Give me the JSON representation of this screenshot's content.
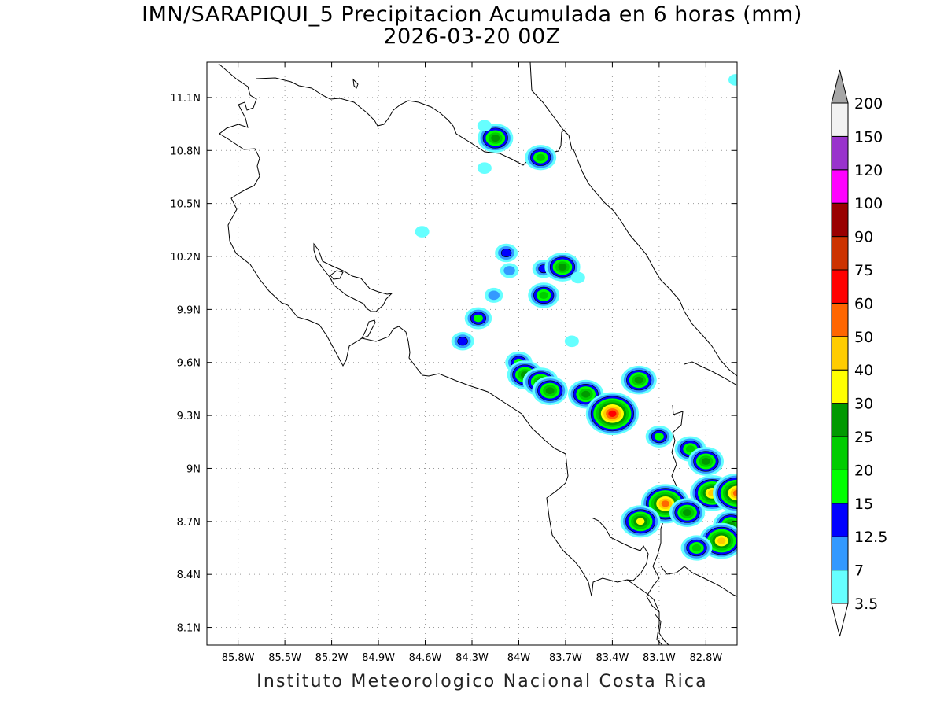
{
  "title": {
    "line1": "IMN/SARAPIQUI_5 Precipitacion Acumulada en 6 horas (mm)",
    "line2": "2026-03-20 00Z"
  },
  "footer": "Instituto Meteorologico Nacional Costa Rica",
  "map": {
    "lon_range": [
      -86.0,
      -82.6
    ],
    "lat_range": [
      8.0,
      11.3
    ],
    "lon_ticks": [
      {
        "value": -85.8,
        "label": "85.8W"
      },
      {
        "value": -85.5,
        "label": "85.5W"
      },
      {
        "value": -85.2,
        "label": "85.2W"
      },
      {
        "value": -84.9,
        "label": "84.9W"
      },
      {
        "value": -84.6,
        "label": "84.6W"
      },
      {
        "value": -84.3,
        "label": "84.3W"
      },
      {
        "value": -84.0,
        "label": "84W"
      },
      {
        "value": -83.7,
        "label": "83.7W"
      },
      {
        "value": -83.4,
        "label": "83.4W"
      },
      {
        "value": -83.1,
        "label": "83.1W"
      },
      {
        "value": -82.8,
        "label": "82.8W"
      }
    ],
    "lat_ticks": [
      {
        "value": 8.1,
        "label": "8.1N"
      },
      {
        "value": 8.4,
        "label": "8.4N"
      },
      {
        "value": 8.7,
        "label": "8.7N"
      },
      {
        "value": 9.0,
        "label": "9N"
      },
      {
        "value": 9.3,
        "label": "9.3N"
      },
      {
        "value": 9.6,
        "label": "9.6N"
      },
      {
        "value": 9.9,
        "label": "9.9N"
      },
      {
        "value": 10.2,
        "label": "10.2N"
      },
      {
        "value": 10.5,
        "label": "10.5N"
      },
      {
        "value": 10.8,
        "label": "10.8N"
      },
      {
        "value": 11.1,
        "label": "11.1N"
      }
    ],
    "grid": true
  },
  "colorbar": {
    "unit": "mm",
    "levels": [
      "3.5",
      "7",
      "12.5",
      "15",
      "20",
      "25",
      "30",
      "40",
      "50",
      "60",
      "75",
      "90",
      "100",
      "120",
      "150",
      "200"
    ],
    "colors": [
      "#66ffff",
      "#3399ff",
      "#0000ff",
      "#00ff00",
      "#00cc00",
      "#009900",
      "#ffff00",
      "#ffcc00",
      "#ff6600",
      "#ff0000",
      "#cc3300",
      "#990000",
      "#ff00ff",
      "#9933cc",
      "#f2f2f2"
    ],
    "under_color": "#ffffff",
    "over_color": "#a6a6a6"
  },
  "chart_data": {
    "type": "heatmap",
    "description_field": "6-hour accumulated precipitation cells (approximate), value = peak mm",
    "cells": [
      {
        "lon": -84.15,
        "lat": 10.87,
        "value": 25
      },
      {
        "lon": -84.22,
        "lat": 10.94,
        "value": 3.5
      },
      {
        "lon": -83.86,
        "lat": 10.76,
        "value": 20
      },
      {
        "lon": -84.22,
        "lat": 10.7,
        "value": 3.5
      },
      {
        "lon": -84.62,
        "lat": 10.34,
        "value": 3.5
      },
      {
        "lon": -84.08,
        "lat": 10.22,
        "value": 12.5
      },
      {
        "lon": -84.06,
        "lat": 10.12,
        "value": 7
      },
      {
        "lon": -83.84,
        "lat": 10.13,
        "value": 12.5
      },
      {
        "lon": -83.72,
        "lat": 10.14,
        "value": 25
      },
      {
        "lon": -83.62,
        "lat": 10.08,
        "value": 3.5
      },
      {
        "lon": -84.16,
        "lat": 9.98,
        "value": 7
      },
      {
        "lon": -83.84,
        "lat": 9.98,
        "value": 20
      },
      {
        "lon": -84.26,
        "lat": 9.85,
        "value": 15
      },
      {
        "lon": -84.36,
        "lat": 9.72,
        "value": 12.5
      },
      {
        "lon": -83.66,
        "lat": 9.72,
        "value": 3.5
      },
      {
        "lon": -84.0,
        "lat": 9.6,
        "value": 15
      },
      {
        "lon": -83.96,
        "lat": 9.53,
        "value": 25
      },
      {
        "lon": -83.86,
        "lat": 9.49,
        "value": 25
      },
      {
        "lon": -83.8,
        "lat": 9.44,
        "value": 25
      },
      {
        "lon": -83.57,
        "lat": 9.42,
        "value": 25
      },
      {
        "lon": -83.4,
        "lat": 9.31,
        "value": 60
      },
      {
        "lon": -83.23,
        "lat": 9.5,
        "value": 25
      },
      {
        "lon": -83.1,
        "lat": 9.18,
        "value": 15
      },
      {
        "lon": -82.9,
        "lat": 9.11,
        "value": 20
      },
      {
        "lon": -82.8,
        "lat": 9.04,
        "value": 25
      },
      {
        "lon": -82.76,
        "lat": 8.86,
        "value": 40
      },
      {
        "lon": -82.6,
        "lat": 8.86,
        "value": 50
      },
      {
        "lon": -83.06,
        "lat": 8.8,
        "value": 50
      },
      {
        "lon": -82.92,
        "lat": 8.75,
        "value": 25
      },
      {
        "lon": -83.22,
        "lat": 8.7,
        "value": 30
      },
      {
        "lon": -82.64,
        "lat": 8.68,
        "value": 25
      },
      {
        "lon": -82.7,
        "lat": 8.59,
        "value": 40
      },
      {
        "lon": -82.86,
        "lat": 8.55,
        "value": 20
      },
      {
        "lon": -82.61,
        "lat": 11.2,
        "value": 3.5
      }
    ]
  }
}
